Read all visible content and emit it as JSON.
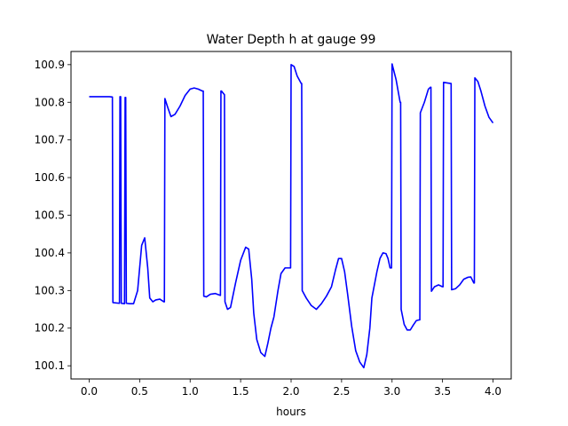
{
  "chart_data": {
    "type": "line",
    "title": "Water Depth h at gauge 99",
    "xlabel": "hours",
    "ylabel": "",
    "xlim": [
      -0.18,
      4.18
    ],
    "ylim": [
      100.065,
      100.935
    ],
    "xticks": [
      0.0,
      0.5,
      1.0,
      1.5,
      2.0,
      2.5,
      3.0,
      3.5,
      4.0
    ],
    "xtick_labels": [
      "0.0",
      "0.5",
      "1.0",
      "1.5",
      "2.0",
      "2.5",
      "3.0",
      "3.5",
      "4.0"
    ],
    "yticks": [
      100.1,
      100.2,
      100.3,
      100.4,
      100.5,
      100.6,
      100.7,
      100.8,
      100.9
    ],
    "ytick_labels": [
      "100.1",
      "100.2",
      "100.3",
      "100.4",
      "100.5",
      "100.6",
      "100.7",
      "100.8",
      "100.9"
    ],
    "grid": false,
    "series": [
      {
        "color": "#0000ff",
        "x": [
          0.0,
          0.1,
          0.2,
          0.23,
          0.235,
          0.3,
          0.305,
          0.312,
          0.318,
          0.35,
          0.356,
          0.362,
          0.368,
          0.4,
          0.44,
          0.48,
          0.52,
          0.55,
          0.58,
          0.6,
          0.63,
          0.66,
          0.7,
          0.74,
          0.745,
          0.75,
          0.78,
          0.81,
          0.85,
          0.9,
          0.95,
          1.0,
          1.04,
          1.08,
          1.12,
          1.13,
          1.135,
          1.16,
          1.2,
          1.25,
          1.3,
          1.305,
          1.31,
          1.34,
          1.345,
          1.37,
          1.4,
          1.45,
          1.5,
          1.55,
          1.58,
          1.61,
          1.63,
          1.66,
          1.7,
          1.74,
          1.77,
          1.8,
          1.83,
          1.87,
          1.9,
          1.94,
          1.98,
          1.995,
          2.0,
          2.03,
          2.06,
          2.1,
          2.105,
          2.11,
          2.15,
          2.2,
          2.25,
          2.3,
          2.35,
          2.4,
          2.44,
          2.47,
          2.5,
          2.53,
          2.56,
          2.6,
          2.64,
          2.68,
          2.72,
          2.75,
          2.78,
          2.8,
          2.85,
          2.88,
          2.91,
          2.94,
          2.96,
          2.98,
          2.995,
          3.0,
          3.04,
          3.08,
          3.085,
          3.09,
          3.12,
          3.15,
          3.18,
          3.21,
          3.24,
          3.27,
          3.275,
          3.28,
          3.32,
          3.36,
          3.38,
          3.385,
          3.39,
          3.42,
          3.46,
          3.5,
          3.505,
          3.51,
          3.58,
          3.585,
          3.59,
          3.63,
          3.67,
          3.71,
          3.75,
          3.78,
          3.81,
          3.815,
          3.82,
          3.85,
          3.88,
          3.92,
          3.96,
          4.0
        ],
        "y": [
          100.815,
          100.815,
          100.815,
          100.814,
          100.268,
          100.266,
          100.815,
          100.815,
          100.266,
          100.265,
          100.813,
          100.813,
          100.266,
          100.265,
          100.265,
          100.3,
          100.42,
          100.44,
          100.36,
          100.28,
          100.27,
          100.275,
          100.277,
          100.27,
          100.27,
          100.81,
          100.785,
          100.762,
          100.768,
          100.79,
          100.818,
          100.835,
          100.838,
          100.835,
          100.83,
          100.83,
          100.285,
          100.283,
          100.29,
          100.292,
          100.287,
          100.83,
          100.83,
          100.82,
          100.27,
          100.25,
          100.255,
          100.32,
          100.38,
          100.415,
          100.41,
          100.33,
          100.24,
          100.17,
          100.135,
          100.125,
          100.16,
          100.2,
          100.23,
          100.3,
          100.345,
          100.36,
          100.36,
          100.36,
          100.9,
          100.895,
          100.87,
          100.85,
          100.85,
          100.3,
          100.28,
          100.26,
          100.25,
          100.265,
          100.285,
          100.31,
          100.355,
          100.385,
          100.385,
          100.35,
          100.29,
          100.205,
          100.14,
          100.11,
          100.095,
          100.13,
          100.2,
          100.28,
          100.35,
          100.385,
          100.4,
          100.398,
          100.385,
          100.36,
          100.36,
          100.902,
          100.86,
          100.8,
          100.8,
          100.25,
          100.21,
          100.195,
          100.195,
          100.208,
          100.22,
          100.222,
          100.222,
          100.772,
          100.8,
          100.835,
          100.84,
          100.84,
          100.298,
          100.31,
          100.315,
          100.31,
          100.31,
          100.853,
          100.85,
          100.85,
          100.302,
          100.305,
          100.315,
          100.33,
          100.335,
          100.336,
          100.32,
          100.32,
          100.865,
          100.855,
          100.83,
          100.79,
          100.76,
          100.745
        ]
      }
    ]
  }
}
